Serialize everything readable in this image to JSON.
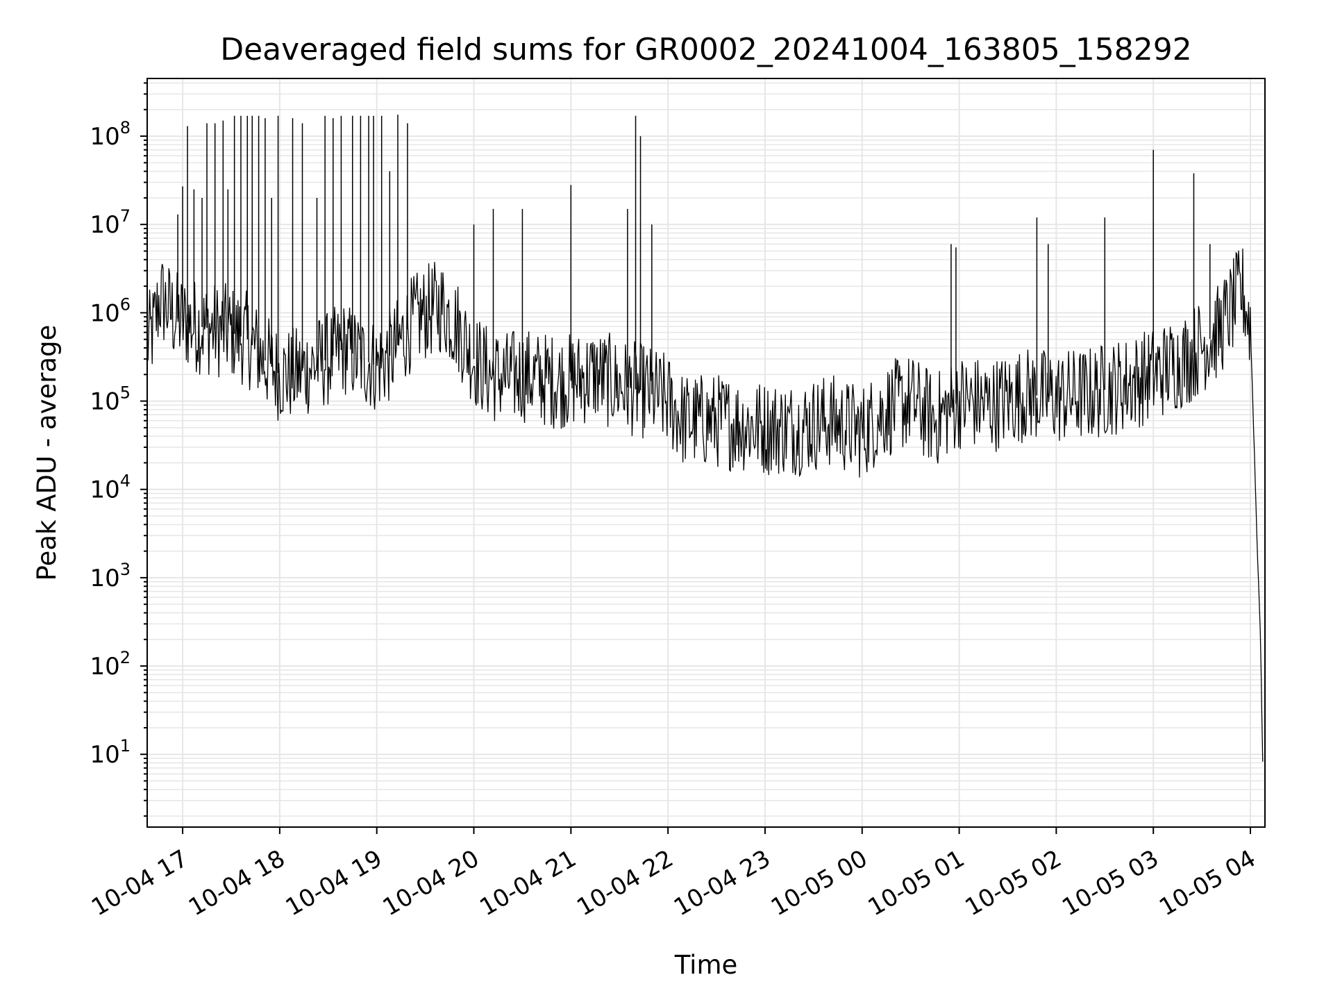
{
  "chart_data": {
    "type": "line",
    "title": "Deaveraged field sums for GR0002_20241004_163805_158292",
    "xlabel": "Time",
    "ylabel": "Peak ADU - average",
    "yscale": "log",
    "ylim": [
      1.5,
      450000000
    ],
    "xlim": [
      "2024-10-04T16:38:05",
      "2024-10-05T04:09:00"
    ],
    "grid": "on",
    "line_color": "#000000",
    "grid_color": "#e6e6e6",
    "x_ticks": [
      {
        "value": "2024-10-04T17:00:00",
        "label": "10-04 17"
      },
      {
        "value": "2024-10-04T18:00:00",
        "label": "10-04 18"
      },
      {
        "value": "2024-10-04T19:00:00",
        "label": "10-04 19"
      },
      {
        "value": "2024-10-04T20:00:00",
        "label": "10-04 20"
      },
      {
        "value": "2024-10-04T21:00:00",
        "label": "10-04 21"
      },
      {
        "value": "2024-10-04T22:00:00",
        "label": "10-04 22"
      },
      {
        "value": "2024-10-04T23:00:00",
        "label": "10-04 23"
      },
      {
        "value": "2024-10-05T00:00:00",
        "label": "10-05 00"
      },
      {
        "value": "2024-10-05T01:00:00",
        "label": "10-05 01"
      },
      {
        "value": "2024-10-05T02:00:00",
        "label": "10-05 02"
      },
      {
        "value": "2024-10-05T03:00:00",
        "label": "10-05 03"
      },
      {
        "value": "2024-10-05T04:00:00",
        "label": "10-05 04"
      }
    ],
    "y_ticks": [
      {
        "value": 10,
        "base": "10",
        "exp": "1"
      },
      {
        "value": 100,
        "base": "10",
        "exp": "2"
      },
      {
        "value": 1000,
        "base": "10",
        "exp": "3"
      },
      {
        "value": 10000,
        "base": "10",
        "exp": "4"
      },
      {
        "value": 100000,
        "base": "10",
        "exp": "5"
      },
      {
        "value": 1000000,
        "base": "10",
        "exp": "6"
      },
      {
        "value": 10000000,
        "base": "10",
        "exp": "7"
      },
      {
        "value": 100000000,
        "base": "10",
        "exp": "8"
      }
    ],
    "series": [
      {
        "name": "",
        "points": [
          [
            "2024-10-04T16:38:05",
            450000
          ],
          [
            "2024-10-04T16:42:00",
            650000
          ],
          [
            "2024-10-04T16:46:00",
            1500000
          ],
          [
            "2024-10-04T16:50:00",
            1200000
          ],
          [
            "2024-10-04T16:55:00",
            900000
          ],
          [
            "2024-10-04T17:00:00",
            800000
          ],
          [
            "2024-10-04T17:10:00",
            700000
          ],
          [
            "2024-10-04T17:20:00",
            650000
          ],
          [
            "2024-10-04T17:30:00",
            600000
          ],
          [
            "2024-10-04T17:40:00",
            500000
          ],
          [
            "2024-10-04T17:50:00",
            300000
          ],
          [
            "2024-10-04T18:00:00",
            200000
          ],
          [
            "2024-10-04T18:10:00",
            200000
          ],
          [
            "2024-10-04T18:20:00",
            250000
          ],
          [
            "2024-10-04T18:30:00",
            300000
          ],
          [
            "2024-10-04T18:40:00",
            400000
          ],
          [
            "2024-10-04T18:50:00",
            300000
          ],
          [
            "2024-10-04T19:00:00",
            250000
          ],
          [
            "2024-10-04T19:10:00",
            350000
          ],
          [
            "2024-10-04T19:20:00",
            700000
          ],
          [
            "2024-10-04T19:30:00",
            1000000
          ],
          [
            "2024-10-04T19:40:00",
            1200000
          ],
          [
            "2024-10-04T19:50:00",
            700000
          ],
          [
            "2024-10-04T20:00:00",
            300000
          ],
          [
            "2024-10-04T20:10:00",
            200000
          ],
          [
            "2024-10-04T20:20:00",
            180000
          ],
          [
            "2024-10-04T20:30:00",
            200000
          ],
          [
            "2024-10-04T20:40:00",
            180000
          ],
          [
            "2024-10-04T20:50:00",
            170000
          ],
          [
            "2024-10-04T21:00:00",
            170000
          ],
          [
            "2024-10-04T21:15:00",
            200000
          ],
          [
            "2024-10-04T21:30:00",
            150000
          ],
          [
            "2024-10-04T21:45:00",
            130000
          ],
          [
            "2024-10-04T22:00:00",
            100000
          ],
          [
            "2024-10-04T22:10:00",
            60000
          ],
          [
            "2024-10-04T22:30:00",
            60000
          ],
          [
            "2024-10-04T22:45:00",
            55000
          ],
          [
            "2024-10-04T23:00:00",
            50000
          ],
          [
            "2024-10-04T23:20:00",
            50000
          ],
          [
            "2024-10-04T23:40:00",
            60000
          ],
          [
            "2024-10-05T00:00:00",
            45000
          ],
          [
            "2024-10-05T00:15:00",
            80000
          ],
          [
            "2024-10-05T00:30:00",
            100000
          ],
          [
            "2024-10-05T00:45:00",
            60000
          ],
          [
            "2024-10-05T01:00:00",
            100000
          ],
          [
            "2024-10-05T01:20:00",
            90000
          ],
          [
            "2024-10-05T01:40:00",
            120000
          ],
          [
            "2024-10-05T02:00:00",
            110000
          ],
          [
            "2024-10-05T02:20:00",
            120000
          ],
          [
            "2024-10-05T02:40:00",
            150000
          ],
          [
            "2024-10-05T03:00:00",
            200000
          ],
          [
            "2024-10-05T03:20:00",
            300000
          ],
          [
            "2024-10-05T03:40:00",
            600000
          ],
          [
            "2024-10-05T03:55:00",
            1800000
          ],
          [
            "2024-10-05T04:00:00",
            700000
          ],
          [
            "2024-10-05T04:02:00",
            50000
          ],
          [
            "2024-10-05T04:04:00",
            3000
          ],
          [
            "2024-10-05T04:06:00",
            300
          ],
          [
            "2024-10-05T04:08:00",
            4
          ]
        ],
        "spikes": [
          [
            "2024-10-04T16:57:00",
            13000000
          ],
          [
            "2024-10-04T17:00:00",
            27000000
          ],
          [
            "2024-10-04T17:03:00",
            130000000
          ],
          [
            "2024-10-04T17:07:00",
            25000000
          ],
          [
            "2024-10-04T17:12:00",
            20000000
          ],
          [
            "2024-10-04T17:15:00",
            140000000
          ],
          [
            "2024-10-04T17:20:00",
            140000000
          ],
          [
            "2024-10-04T17:25:00",
            150000000
          ],
          [
            "2024-10-04T17:28:00",
            25000000
          ],
          [
            "2024-10-04T17:32:00",
            170000000
          ],
          [
            "2024-10-04T17:36:00",
            170000000
          ],
          [
            "2024-10-04T17:40:00",
            170000000
          ],
          [
            "2024-10-04T17:43:00",
            170000000
          ],
          [
            "2024-10-04T17:47:00",
            170000000
          ],
          [
            "2024-10-04T17:51:00",
            160000000
          ],
          [
            "2024-10-04T17:55:00",
            20000000
          ],
          [
            "2024-10-04T17:59:00",
            170000000
          ],
          [
            "2024-10-04T18:08:00",
            160000000
          ],
          [
            "2024-10-04T18:14:00",
            140000000
          ],
          [
            "2024-10-04T18:23:00",
            20000000
          ],
          [
            "2024-10-04T18:28:00",
            170000000
          ],
          [
            "2024-10-04T18:33:00",
            160000000
          ],
          [
            "2024-10-04T18:38:00",
            170000000
          ],
          [
            "2024-10-04T18:45:00",
            170000000
          ],
          [
            "2024-10-04T18:50:00",
            170000000
          ],
          [
            "2024-10-04T18:55:00",
            170000000
          ],
          [
            "2024-10-04T18:58:00",
            170000000
          ],
          [
            "2024-10-04T19:03:00",
            170000000
          ],
          [
            "2024-10-04T19:08:00",
            40000000
          ],
          [
            "2024-10-04T19:13:00",
            175000000
          ],
          [
            "2024-10-04T19:19:00",
            140000000
          ],
          [
            "2024-10-04T20:00:00",
            10000000
          ],
          [
            "2024-10-04T20:12:00",
            15000000
          ],
          [
            "2024-10-04T20:30:00",
            15000000
          ],
          [
            "2024-10-04T21:00:00",
            28000000
          ],
          [
            "2024-10-04T21:35:00",
            15000000
          ],
          [
            "2024-10-04T21:40:00",
            170000000
          ],
          [
            "2024-10-04T21:43:00",
            100000000
          ],
          [
            "2024-10-04T21:50:00",
            10000000
          ],
          [
            "2024-10-05T00:55:00",
            6000000
          ],
          [
            "2024-10-05T00:58:00",
            5500000
          ],
          [
            "2024-10-05T01:48:00",
            12000000
          ],
          [
            "2024-10-05T01:55:00",
            6000000
          ],
          [
            "2024-10-05T02:30:00",
            12000000
          ],
          [
            "2024-10-05T03:00:00",
            70000000
          ],
          [
            "2024-10-05T03:25:00",
            38000000
          ],
          [
            "2024-10-05T03:35:00",
            6000000
          ]
        ]
      }
    ]
  }
}
